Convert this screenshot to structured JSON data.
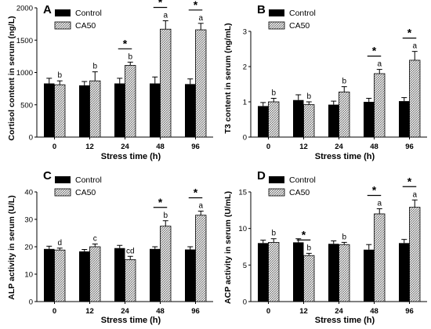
{
  "chart_data": [
    {
      "type": "bar",
      "panel": "A",
      "ylabel": "Cortisol content in serum (ng/L)",
      "xlabel": "Stress time (h)",
      "categories": [
        "0",
        "12",
        "24",
        "48",
        "96"
      ],
      "ylim": [
        0,
        2000
      ],
      "yticks": [
        "0",
        "500",
        "1000",
        "1500",
        "2000"
      ],
      "legend": {
        "position": "top-left"
      },
      "series": [
        {
          "name": "Control",
          "values": [
            830,
            800,
            830,
            830,
            820
          ],
          "errors": [
            80,
            60,
            80,
            100,
            80
          ]
        },
        {
          "name": "CA50",
          "values": [
            810,
            870,
            1110,
            1670,
            1660
          ],
          "errors": [
            60,
            140,
            50,
            130,
            100
          ]
        }
      ],
      "letters": [
        "b",
        "b",
        "b",
        "a",
        "a"
      ],
      "stars": [
        2,
        3,
        4
      ]
    },
    {
      "type": "bar",
      "panel": "B",
      "ylabel": "T3 content in serum (ng/mL)",
      "xlabel": "Stress time (h)",
      "categories": [
        "0",
        "12",
        "24",
        "48",
        "96"
      ],
      "ylim": [
        0,
        3
      ],
      "yticks": [
        "0",
        "1",
        "2",
        "3"
      ],
      "legend": {
        "position": "top-left"
      },
      "series": [
        {
          "name": "Control",
          "values": [
            0.88,
            1.05,
            0.92,
            1.0,
            1.02
          ],
          "errors": [
            0.1,
            0.15,
            0.1,
            0.1,
            0.1
          ]
        },
        {
          "name": "CA50",
          "values": [
            1.0,
            0.92,
            1.28,
            1.8,
            2.18
          ],
          "errors": [
            0.1,
            0.08,
            0.15,
            0.12,
            0.25
          ]
        }
      ],
      "letters": [
        "b",
        "b",
        "b",
        "a",
        "a"
      ],
      "stars": [
        3,
        4
      ]
    },
    {
      "type": "bar",
      "panel": "C",
      "ylabel": "ALP activity in serum (U/L)",
      "xlabel": "Stress time (h)",
      "categories": [
        "0",
        "12",
        "24",
        "48",
        "96"
      ],
      "ylim": [
        0,
        40
      ],
      "yticks": [
        "0",
        "10",
        "20",
        "30",
        "40"
      ],
      "legend": {
        "position": "top-left"
      },
      "series": [
        {
          "name": "Control",
          "values": [
            19.2,
            18.3,
            19.5,
            19.2,
            19.0
          ],
          "errors": [
            1.0,
            0.7,
            1.0,
            0.8,
            1.0
          ]
        },
        {
          "name": "CA50",
          "values": [
            18.8,
            20.0,
            15.3,
            27.5,
            31.5
          ],
          "errors": [
            0.7,
            1.0,
            1.2,
            2.0,
            1.5
          ]
        }
      ],
      "letters": [
        "d",
        "c",
        "cd",
        "b",
        "a"
      ],
      "stars": [
        3,
        4
      ]
    },
    {
      "type": "bar",
      "panel": "D",
      "ylabel": "ACP activity in serum (U/mL)",
      "xlabel": "Stress time (h)",
      "categories": [
        "0",
        "12",
        "24",
        "48",
        "96"
      ],
      "ylim": [
        0,
        15
      ],
      "yticks": [
        "0",
        "5",
        "10",
        "15"
      ],
      "legend": {
        "position": "top-left"
      },
      "series": [
        {
          "name": "Control",
          "values": [
            8.0,
            8.1,
            7.9,
            7.1,
            8.0
          ],
          "errors": [
            0.4,
            0.5,
            0.4,
            0.7,
            0.5
          ]
        },
        {
          "name": "CA50",
          "values": [
            8.1,
            6.3,
            7.8,
            12.0,
            12.9
          ],
          "errors": [
            0.5,
            0.3,
            0.3,
            0.7,
            1.0
          ]
        }
      ],
      "letters": [
        "b",
        "b",
        "b",
        "a",
        "a"
      ],
      "stars": [
        1,
        3,
        4
      ]
    }
  ]
}
